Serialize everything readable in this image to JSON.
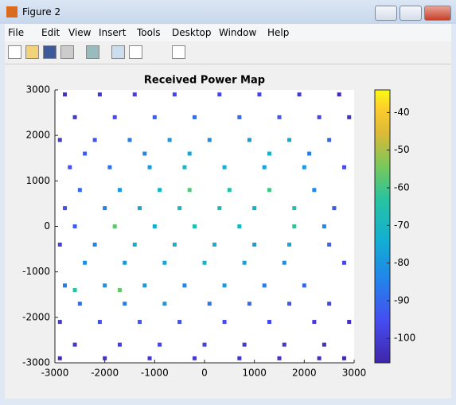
{
  "window": {
    "title": "Figure 2",
    "menu": [
      "File",
      "Edit",
      "View",
      "Insert",
      "Tools",
      "Desktop",
      "Window",
      "Help"
    ]
  },
  "chart_data": {
    "type": "scatter",
    "title": "Received Power Map",
    "x": [
      -2800,
      -2100,
      -1400,
      -600,
      300,
      1100,
      1900,
      2700,
      -2600,
      -1800,
      -1000,
      -200,
      700,
      1500,
      2300,
      2900,
      -2900,
      -2200,
      -1500,
      -700,
      100,
      900,
      1700,
      2500,
      -2400,
      -1200,
      -300,
      1300,
      2100,
      -2700,
      -1900,
      -1100,
      -400,
      400,
      1200,
      2000,
      2800,
      -2500,
      -1700,
      -900,
      -300,
      500,
      1300,
      2200,
      -2800,
      -2000,
      -1300,
      -500,
      300,
      1000,
      1800,
      2600,
      -2600,
      -1800,
      -1000,
      -200,
      700,
      1800,
      2400,
      -2900,
      -2200,
      -1400,
      -600,
      200,
      1000,
      1700,
      2500,
      -2400,
      -1600,
      -800,
      0,
      800,
      1600,
      2800,
      -2800,
      -2000,
      -1200,
      -400,
      400,
      1200,
      2000,
      -2600,
      -1700,
      -2500,
      -1600,
      -800,
      100,
      900,
      1700,
      2500,
      -2900,
      -2100,
      -1300,
      -500,
      400,
      1300,
      2200,
      2900,
      -2600,
      -1700,
      -900,
      0,
      800,
      1600,
      2400,
      -2900,
      -2000,
      -1100,
      -200,
      700,
      1500,
      2300,
      2800
    ],
    "y": [
      2900,
      2900,
      2900,
      2900,
      2900,
      2900,
      2900,
      2900,
      2400,
      2400,
      2400,
      2400,
      2400,
      2400,
      2400,
      2400,
      1900,
      1900,
      1900,
      1900,
      1900,
      1900,
      1900,
      1900,
      1600,
      1600,
      1600,
      1600,
      1600,
      1300,
      1300,
      1300,
      1300,
      1300,
      1300,
      1300,
      1300,
      800,
      800,
      800,
      800,
      800,
      800,
      800,
      400,
      400,
      400,
      400,
      400,
      400,
      400,
      400,
      0,
      0,
      0,
      0,
      0,
      0,
      0,
      -400,
      -400,
      -400,
      -400,
      -400,
      -400,
      -400,
      -400,
      -800,
      -800,
      -800,
      -800,
      -800,
      -800,
      -800,
      -1300,
      -1300,
      -1300,
      -1300,
      -1300,
      -1300,
      -1300,
      -1400,
      -1400,
      -1700,
      -1700,
      -1700,
      -1700,
      -1700,
      -1700,
      -1700,
      -2100,
      -2100,
      -2100,
      -2100,
      -2100,
      -2100,
      -2100,
      -2100,
      -2600,
      -2600,
      -2600,
      -2600,
      -2600,
      -2600,
      -2600,
      -2900,
      -2900,
      -2900,
      -2900,
      -2900,
      -2900,
      -2900,
      -2900
    ],
    "power": [
      -103,
      -101,
      -99,
      -97,
      -97,
      -98,
      -100,
      -104,
      -101,
      -96,
      -92,
      -89,
      -90,
      -93,
      -97,
      -103,
      -100,
      -94,
      -86,
      -80,
      -82,
      -79,
      -74,
      -90,
      -92,
      -84,
      -76,
      -72,
      -85,
      -95,
      -88,
      -79,
      -70,
      -73,
      -77,
      -80,
      -96,
      -90,
      -80,
      -72,
      -58,
      -65,
      -60,
      -83,
      -95,
      -85,
      -76,
      -70,
      -68,
      -73,
      -65,
      -92,
      -92,
      -57,
      -74,
      -66,
      -71,
      -62,
      -83,
      -98,
      -83,
      -74,
      -71,
      -73,
      -78,
      -76,
      -90,
      -82,
      -80,
      -76,
      -72,
      -77,
      -82,
      -97,
      -86,
      -81,
      -79,
      -84,
      -80,
      -86,
      -90,
      -63,
      -56,
      -88,
      -86,
      -80,
      -87,
      -89,
      -93,
      -97,
      -100,
      -95,
      -93,
      -94,
      -96,
      -97,
      -100,
      -104,
      -101,
      -99,
      -97,
      -98,
      -100,
      -101,
      -103,
      -104,
      -103,
      -101,
      -101,
      -102,
      -103,
      -104,
      -106
    ],
    "xlim": [
      -3000,
      3000
    ],
    "xticks": [
      -3000,
      -2000,
      -1000,
      0,
      1000,
      2000,
      3000
    ],
    "ylim": [
      -3000,
      3000
    ],
    "yticks": [
      -3000,
      -2000,
      -1000,
      0,
      1000,
      2000,
      3000
    ],
    "colormap": "parula",
    "clim": [
      -106.5,
      -34
    ],
    "cticks": [
      -40,
      -50,
      -60,
      -70,
      -80,
      -90,
      -100
    ],
    "grid": false
  }
}
